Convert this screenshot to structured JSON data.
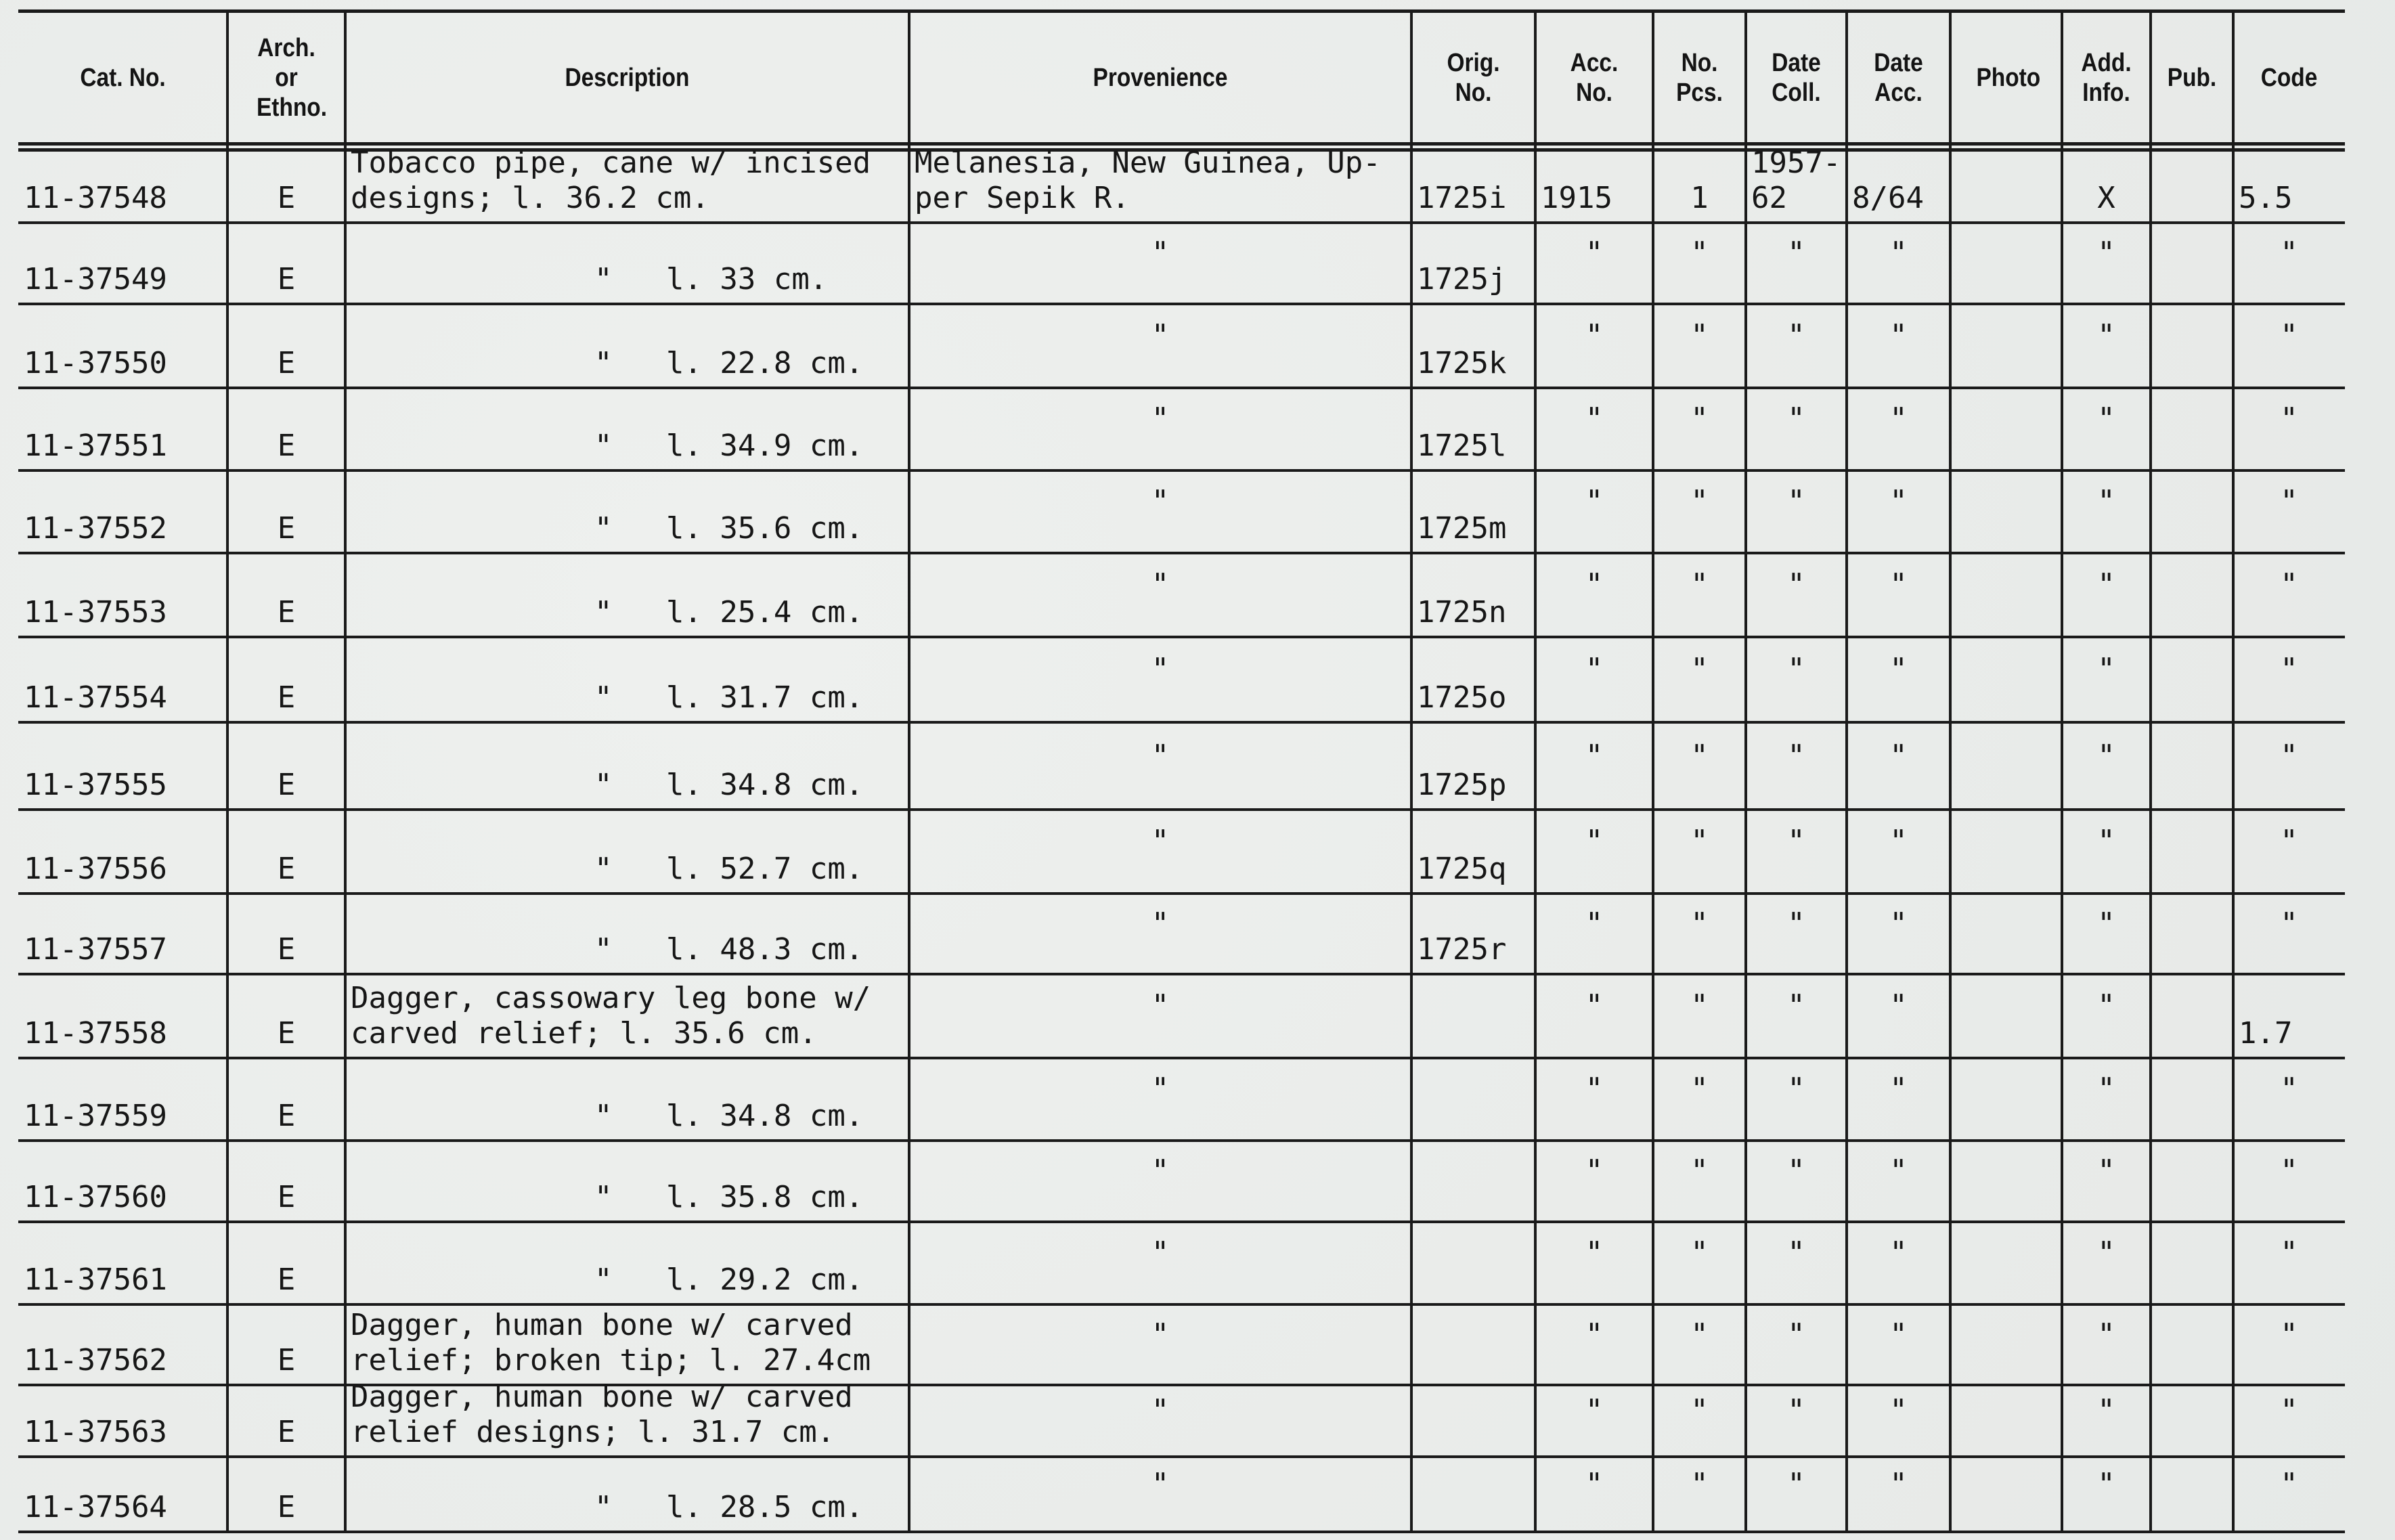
{
  "headers": [
    "Cat. No.",
    "Arch. or Ethno.",
    "Description",
    "Provenience",
    "Orig. No.",
    "Acc. No.",
    "No. Pcs.",
    "Date Coll.",
    "Date Acc.",
    "Photo",
    "Add. Info.",
    "Pub.",
    "Code"
  ],
  "rows": [
    {
      "cat": "11-37548",
      "ae": "E",
      "desc": [
        "Tobacco pipe, cane w/ incised",
        "designs; l. 36.2 cm."
      ],
      "prov": [
        "Melanesia, New Guinea, Up-",
        "per Sepik R."
      ],
      "orig": "1725i",
      "acc": "1915",
      "pcs": "1",
      "coll": [
        "1957-",
        "62"
      ],
      "dacc": "8/64",
      "photo": "",
      "add": "X",
      "pub": "",
      "code": "5.5"
    },
    {
      "cat": "11-37549",
      "ae": "E",
      "desc": [
        "\"   l. 33 cm."
      ],
      "prov": [
        "\""
      ],
      "orig": "1725j",
      "acc": "\"",
      "pcs": "\"",
      "coll": [
        "\""
      ],
      "dacc": "\"",
      "photo": "",
      "add": "\"",
      "pub": "",
      "code": "\""
    },
    {
      "cat": "11-37550",
      "ae": "E",
      "desc": [
        "\"   l. 22.8 cm."
      ],
      "prov": [
        "\""
      ],
      "orig": "1725k",
      "acc": "\"",
      "pcs": "\"",
      "coll": [
        "\""
      ],
      "dacc": "\"",
      "photo": "",
      "add": "\"",
      "pub": "",
      "code": "\""
    },
    {
      "cat": "11-37551",
      "ae": "E",
      "desc": [
        "\"   l. 34.9 cm."
      ],
      "prov": [
        "\""
      ],
      "orig": "1725l",
      "acc": "\"",
      "pcs": "\"",
      "coll": [
        "\""
      ],
      "dacc": "\"",
      "photo": "",
      "add": "\"",
      "pub": "",
      "code": "\""
    },
    {
      "cat": "11-37552",
      "ae": "E",
      "desc": [
        "\"   l. 35.6 cm."
      ],
      "prov": [
        "\""
      ],
      "orig": "1725m",
      "acc": "\"",
      "pcs": "\"",
      "coll": [
        "\""
      ],
      "dacc": "\"",
      "photo": "",
      "add": "\"",
      "pub": "",
      "code": "\""
    },
    {
      "cat": "11-37553",
      "ae": "E",
      "desc": [
        "\"   l. 25.4 cm."
      ],
      "prov": [
        "\""
      ],
      "orig": "1725n",
      "acc": "\"",
      "pcs": "\"",
      "coll": [
        "\""
      ],
      "dacc": "\"",
      "photo": "",
      "add": "\"",
      "pub": "",
      "code": "\""
    },
    {
      "cat": "11-37554",
      "ae": "E",
      "desc": [
        "\"   l. 31.7 cm."
      ],
      "prov": [
        "\""
      ],
      "orig": "1725o",
      "acc": "\"",
      "pcs": "\"",
      "coll": [
        "\""
      ],
      "dacc": "\"",
      "photo": "",
      "add": "\"",
      "pub": "",
      "code": "\""
    },
    {
      "cat": "11-37555",
      "ae": "E",
      "desc": [
        "\"   l. 34.8 cm."
      ],
      "prov": [
        "\""
      ],
      "orig": "1725p",
      "acc": "\"",
      "pcs": "\"",
      "coll": [
        "\""
      ],
      "dacc": "\"",
      "photo": "",
      "add": "\"",
      "pub": "",
      "code": "\""
    },
    {
      "cat": "11-37556",
      "ae": "E",
      "desc": [
        "\"   l. 52.7 cm."
      ],
      "prov": [
        "\""
      ],
      "orig": "1725q",
      "acc": "\"",
      "pcs": "\"",
      "coll": [
        "\""
      ],
      "dacc": "\"",
      "photo": "",
      "add": "\"",
      "pub": "",
      "code": "\""
    },
    {
      "cat": "11-37557",
      "ae": "E",
      "desc": [
        "\"   l. 48.3 cm."
      ],
      "prov": [
        "\""
      ],
      "orig": "1725r",
      "acc": "\"",
      "pcs": "\"",
      "coll": [
        "\""
      ],
      "dacc": "\"",
      "photo": "",
      "add": "\"",
      "pub": "",
      "code": "\""
    },
    {
      "cat": "11-37558",
      "ae": "E",
      "desc": [
        "Dagger, cassowary leg bone w/",
        "carved relief; l. 35.6 cm."
      ],
      "prov": [
        "\""
      ],
      "orig": "",
      "acc": "\"",
      "pcs": "\"",
      "coll": [
        "\""
      ],
      "dacc": "\"",
      "photo": "",
      "add": "\"",
      "pub": "",
      "code": "1.7"
    },
    {
      "cat": "11-37559",
      "ae": "E",
      "desc": [
        "\"   l. 34.8 cm."
      ],
      "prov": [
        "\""
      ],
      "orig": "",
      "acc": "\"",
      "pcs": "\"",
      "coll": [
        "\""
      ],
      "dacc": "\"",
      "photo": "",
      "add": "\"",
      "pub": "",
      "code": "\""
    },
    {
      "cat": "11-37560",
      "ae": "E",
      "desc": [
        "\"   l. 35.8 cm."
      ],
      "prov": [
        "\""
      ],
      "orig": "",
      "acc": "\"",
      "pcs": "\"",
      "coll": [
        "\""
      ],
      "dacc": "\"",
      "photo": "",
      "add": "\"",
      "pub": "",
      "code": "\""
    },
    {
      "cat": "11-37561",
      "ae": "E",
      "desc": [
        "\"   l. 29.2 cm."
      ],
      "prov": [
        "\""
      ],
      "orig": "",
      "acc": "\"",
      "pcs": "\"",
      "coll": [
        "\""
      ],
      "dacc": "\"",
      "photo": "",
      "add": "\"",
      "pub": "",
      "code": "\""
    },
    {
      "cat": "11-37562",
      "ae": "E",
      "desc": [
        "Dagger, human bone w/ carved",
        "relief; broken tip; l. 27.4cm"
      ],
      "prov": [
        "\""
      ],
      "orig": "",
      "acc": "\"",
      "pcs": "\"",
      "coll": [
        "\""
      ],
      "dacc": "\"",
      "photo": "",
      "add": "\"",
      "pub": "",
      "code": "\""
    },
    {
      "cat": "11-37563",
      "ae": "E",
      "desc": [
        "Dagger, human bone w/ carved",
        "relief designs; l. 31.7 cm."
      ],
      "prov": [
        "\""
      ],
      "orig": "",
      "acc": "\"",
      "pcs": "\"",
      "coll": [
        "\""
      ],
      "dacc": "\"",
      "photo": "",
      "add": "\"",
      "pub": "",
      "code": "\""
    },
    {
      "cat": "11-37564",
      "ae": "E",
      "desc": [
        "\"   l. 28.5 cm."
      ],
      "prov": [
        "\""
      ],
      "orig": "",
      "acc": "\"",
      "pcs": "\"",
      "coll": [
        "\""
      ],
      "dacc": "\"",
      "photo": "",
      "add": "\"",
      "pub": "",
      "code": "\""
    }
  ]
}
